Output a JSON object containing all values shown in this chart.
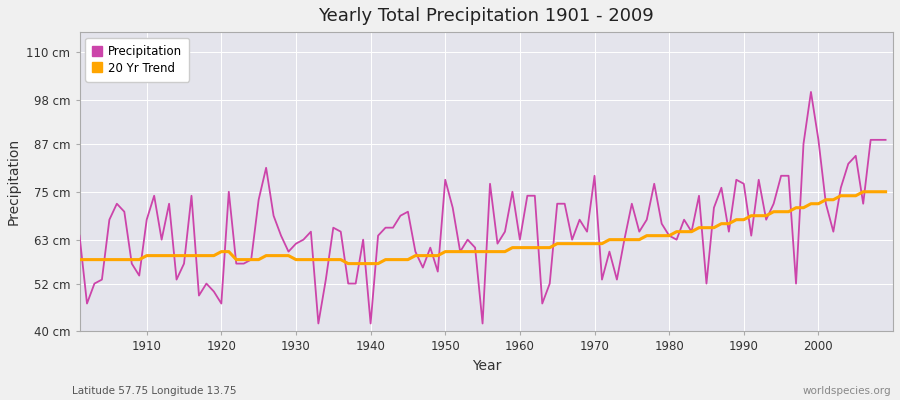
{
  "title": "Yearly Total Precipitation 1901 - 2009",
  "xlabel": "Year",
  "ylabel": "Precipitation",
  "subtitle": "Latitude 57.75 Longitude 13.75",
  "watermark": "worldspecies.org",
  "precip_color": "#CC44AA",
  "trend_color": "#FFA500",
  "bg_color": "#F0F0F0",
  "plot_bg_color": "#E4E4EC",
  "ylim": [
    40,
    115
  ],
  "yticks": [
    40,
    52,
    63,
    75,
    87,
    98,
    110
  ],
  "ytick_labels": [
    "40 cm",
    "52 cm",
    "63 cm",
    "75 cm",
    "87 cm",
    "98 cm",
    "110 cm"
  ],
  "years": [
    1901,
    1902,
    1903,
    1904,
    1905,
    1906,
    1907,
    1908,
    1909,
    1910,
    1911,
    1912,
    1913,
    1914,
    1915,
    1916,
    1917,
    1918,
    1919,
    1920,
    1921,
    1922,
    1923,
    1924,
    1925,
    1926,
    1927,
    1928,
    1929,
    1930,
    1931,
    1932,
    1933,
    1934,
    1935,
    1936,
    1937,
    1938,
    1939,
    1940,
    1941,
    1942,
    1943,
    1944,
    1945,
    1946,
    1947,
    1948,
    1949,
    1950,
    1951,
    1952,
    1953,
    1954,
    1955,
    1956,
    1957,
    1958,
    1959,
    1960,
    1961,
    1962,
    1963,
    1964,
    1965,
    1966,
    1967,
    1968,
    1969,
    1970,
    1971,
    1972,
    1973,
    1974,
    1975,
    1976,
    1977,
    1978,
    1979,
    1980,
    1981,
    1982,
    1983,
    1984,
    1985,
    1986,
    1987,
    1988,
    1989,
    1990,
    1991,
    1992,
    1993,
    1994,
    1995,
    1996,
    1997,
    1998,
    1999,
    2000,
    2001,
    2002,
    2003,
    2004,
    2005,
    2006,
    2007,
    2008,
    2009
  ],
  "precip": [
    64,
    47,
    52,
    53,
    68,
    72,
    70,
    57,
    54,
    68,
    74,
    63,
    72,
    53,
    57,
    74,
    49,
    52,
    50,
    47,
    75,
    57,
    57,
    58,
    73,
    81,
    69,
    64,
    60,
    62,
    63,
    65,
    42,
    53,
    66,
    65,
    52,
    52,
    63,
    42,
    64,
    66,
    66,
    69,
    70,
    60,
    56,
    61,
    55,
    78,
    71,
    60,
    63,
    61,
    42,
    77,
    62,
    65,
    75,
    63,
    74,
    74,
    47,
    52,
    72,
    72,
    63,
    68,
    65,
    79,
    53,
    60,
    53,
    63,
    72,
    65,
    68,
    77,
    67,
    64,
    63,
    68,
    65,
    74,
    52,
    71,
    76,
    65,
    78,
    77,
    64,
    78,
    68,
    72,
    79,
    79,
    52,
    87,
    100,
    88,
    72,
    65,
    76,
    82,
    84,
    72,
    88,
    88,
    88
  ],
  "trend": [
    58,
    58,
    58,
    58,
    58,
    58,
    58,
    58,
    58,
    59,
    59,
    59,
    59,
    59,
    59,
    59,
    59,
    59,
    59,
    60,
    60,
    58,
    58,
    58,
    58,
    59,
    59,
    59,
    59,
    58,
    58,
    58,
    58,
    58,
    58,
    58,
    57,
    57,
    57,
    57,
    57,
    58,
    58,
    58,
    58,
    59,
    59,
    59,
    59,
    60,
    60,
    60,
    60,
    60,
    60,
    60,
    60,
    60,
    61,
    61,
    61,
    61,
    61,
    61,
    62,
    62,
    62,
    62,
    62,
    62,
    62,
    63,
    63,
    63,
    63,
    63,
    64,
    64,
    64,
    64,
    65,
    65,
    65,
    66,
    66,
    66,
    67,
    67,
    68,
    68,
    69,
    69,
    69,
    70,
    70,
    70,
    71,
    71,
    72,
    72,
    73,
    73,
    74,
    74,
    74,
    75,
    75,
    75,
    75
  ]
}
